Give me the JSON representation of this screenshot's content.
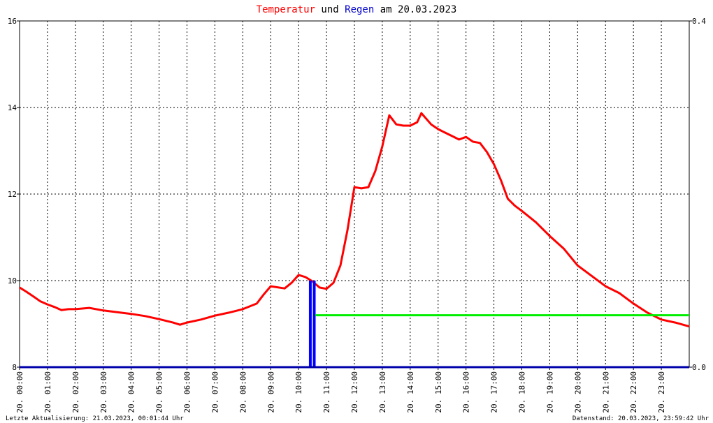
{
  "chart_data": {
    "type": "line",
    "title": [
      {
        "text": "Temperatur",
        "color": "#ff0000"
      },
      {
        "text": "und",
        "color": "#000000"
      },
      {
        "text": "Regen",
        "color": "#0000cc"
      },
      {
        "text": "am 20.03.2023",
        "color": "#000000"
      }
    ],
    "xlim": [
      0,
      24
    ],
    "xticks": [
      {
        "value": 0,
        "label": "20. 00:00"
      },
      {
        "value": 1,
        "label": "20. 01:00"
      },
      {
        "value": 2,
        "label": "20. 02:00"
      },
      {
        "value": 3,
        "label": "20. 03:00"
      },
      {
        "value": 4,
        "label": "20. 04:00"
      },
      {
        "value": 5,
        "label": "20. 05:00"
      },
      {
        "value": 6,
        "label": "20. 06:00"
      },
      {
        "value": 7,
        "label": "20. 07:00"
      },
      {
        "value": 8,
        "label": "20. 08:00"
      },
      {
        "value": 9,
        "label": "20. 09:00"
      },
      {
        "value": 10,
        "label": "20. 10:00"
      },
      {
        "value": 11,
        "label": "20. 11:00"
      },
      {
        "value": 12,
        "label": "20. 12:00"
      },
      {
        "value": 13,
        "label": "20. 13:00"
      },
      {
        "value": 14,
        "label": "20. 14:00"
      },
      {
        "value": 15,
        "label": "20. 15:00"
      },
      {
        "value": 16,
        "label": "20. 16:00"
      },
      {
        "value": 17,
        "label": "20. 17:00"
      },
      {
        "value": 18,
        "label": "20. 18:00"
      },
      {
        "value": 19,
        "label": "20. 19:00"
      },
      {
        "value": 20,
        "label": "20. 20:00"
      },
      {
        "value": 21,
        "label": "20. 21:00"
      },
      {
        "value": 22,
        "label": "20. 22:00"
      },
      {
        "value": 23,
        "label": "20. 23:00"
      }
    ],
    "ylim": [
      8,
      16
    ],
    "yticks": [
      8,
      10,
      12,
      14,
      16
    ],
    "y2lim": [
      0,
      0.4
    ],
    "y2ticks": [
      {
        "value": 0,
        "label": "0.0"
      },
      {
        "value": 0.4,
        "label": "0.4"
      }
    ],
    "grid": true,
    "series": [
      {
        "type": "line",
        "color": "#ff0000",
        "x": [
          0,
          0.25,
          0.5,
          0.75,
          1,
          1.25,
          1.5,
          1.75,
          2,
          2.5,
          3,
          3.5,
          4,
          4.5,
          5,
          5.5,
          5.75,
          6,
          6.5,
          7,
          7.5,
          8,
          8.5,
          8.75,
          9,
          9.5,
          9.75,
          10,
          10.25,
          10.5,
          10.75,
          11,
          11.25,
          11.5,
          11.75,
          12,
          12.25,
          12.5,
          12.75,
          13,
          13.25,
          13.5,
          13.75,
          14,
          14.25,
          14.4,
          14.75,
          15,
          15.25,
          15.5,
          15.75,
          16,
          16.25,
          16.5,
          16.75,
          17,
          17.25,
          17.5,
          17.75,
          18,
          18.5,
          19,
          19.5,
          20,
          20.5,
          21,
          21.5,
          22,
          22.5,
          23,
          23.5,
          24
        ],
        "values": [
          9.84,
          9.74,
          9.63,
          9.52,
          9.45,
          9.39,
          9.32,
          9.34,
          9.34,
          9.37,
          9.31,
          9.27,
          9.23,
          9.18,
          9.11,
          9.03,
          8.98,
          9.03,
          9.1,
          9.19,
          9.26,
          9.34,
          9.47,
          9.68,
          9.87,
          9.82,
          9.95,
          10.13,
          10.08,
          9.98,
          9.84,
          9.81,
          9.95,
          10.35,
          11.16,
          12.16,
          12.13,
          12.16,
          12.53,
          13.1,
          13.82,
          13.61,
          13.58,
          13.58,
          13.66,
          13.87,
          13.61,
          13.5,
          13.42,
          13.34,
          13.26,
          13.32,
          13.21,
          13.18,
          12.97,
          12.69,
          12.32,
          11.89,
          11.73,
          11.61,
          11.35,
          11.03,
          10.74,
          10.35,
          10.11,
          9.87,
          9.71,
          9.47,
          9.26,
          9.1,
          9.03,
          8.94
        ]
      },
      {
        "type": "bar",
        "axis": "y2",
        "color": "#0000ff",
        "x": [
          10.42,
          10.56
        ],
        "values": [
          0.1,
          0.1
        ]
      },
      {
        "type": "line",
        "axis": "y2",
        "color": "#00ee00",
        "x": [
          10.6,
          24
        ],
        "values": [
          0.06,
          0.06
        ]
      }
    ],
    "footer_left": "Letzte Aktualisierung: 21.03.2023, 00:01:44 Uhr",
    "footer_right": "Datenstand: 20.03.2023, 23:59:42 Uhr"
  }
}
